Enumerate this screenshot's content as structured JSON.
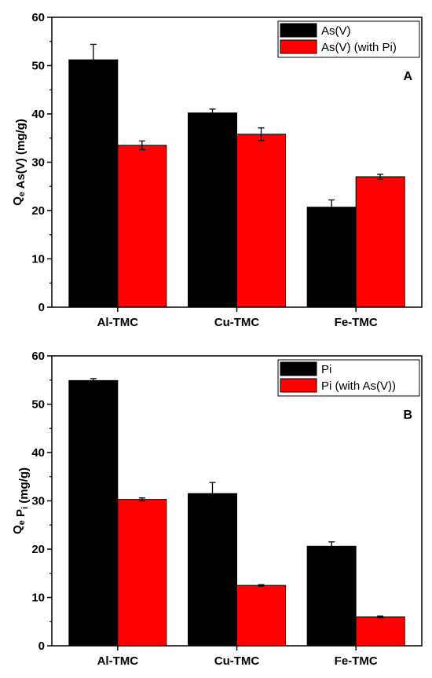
{
  "chart_data": [
    {
      "type": "bar",
      "panel_label": "A",
      "categories": [
        "Al-TMC",
        "Cu-TMC",
        "Fe-TMC"
      ],
      "ylabel": {
        "main": "Q",
        "sub": "e",
        "rest": " As(V) (mg/g)"
      },
      "ylim": [
        0,
        60
      ],
      "yticks": [
        0,
        10,
        20,
        30,
        40,
        50,
        60
      ],
      "legend_position": "top-right",
      "series": [
        {
          "name": "As(V)",
          "color": "#000000",
          "values": [
            51.2,
            40.2,
            20.7
          ],
          "errors": [
            3.2,
            0.8,
            1.5
          ]
        },
        {
          "name": "As(V) (with Pi)",
          "color": "#ff0000",
          "values": [
            33.5,
            35.8,
            27.0
          ],
          "errors": [
            0.9,
            1.3,
            0.5
          ]
        }
      ]
    },
    {
      "type": "bar",
      "panel_label": "B",
      "categories": [
        "Al-TMC",
        "Cu-TMC",
        "Fe-TMC"
      ],
      "ylabel": {
        "main": "Q",
        "sub": "e",
        "rest": " P",
        "sub2": "i",
        "rest2": " (mg/g)"
      },
      "ylim": [
        0,
        60
      ],
      "yticks": [
        0,
        10,
        20,
        30,
        40,
        50,
        60
      ],
      "legend_position": "top-right",
      "series": [
        {
          "name": "Pi",
          "color": "#000000",
          "values": [
            54.9,
            31.5,
            20.6
          ],
          "errors": [
            0.4,
            2.3,
            0.9
          ]
        },
        {
          "name": "Pi (with As(V))",
          "color": "#ff0000",
          "values": [
            30.3,
            12.5,
            6.0
          ],
          "errors": [
            0.3,
            0.15,
            0.15
          ]
        }
      ]
    }
  ]
}
